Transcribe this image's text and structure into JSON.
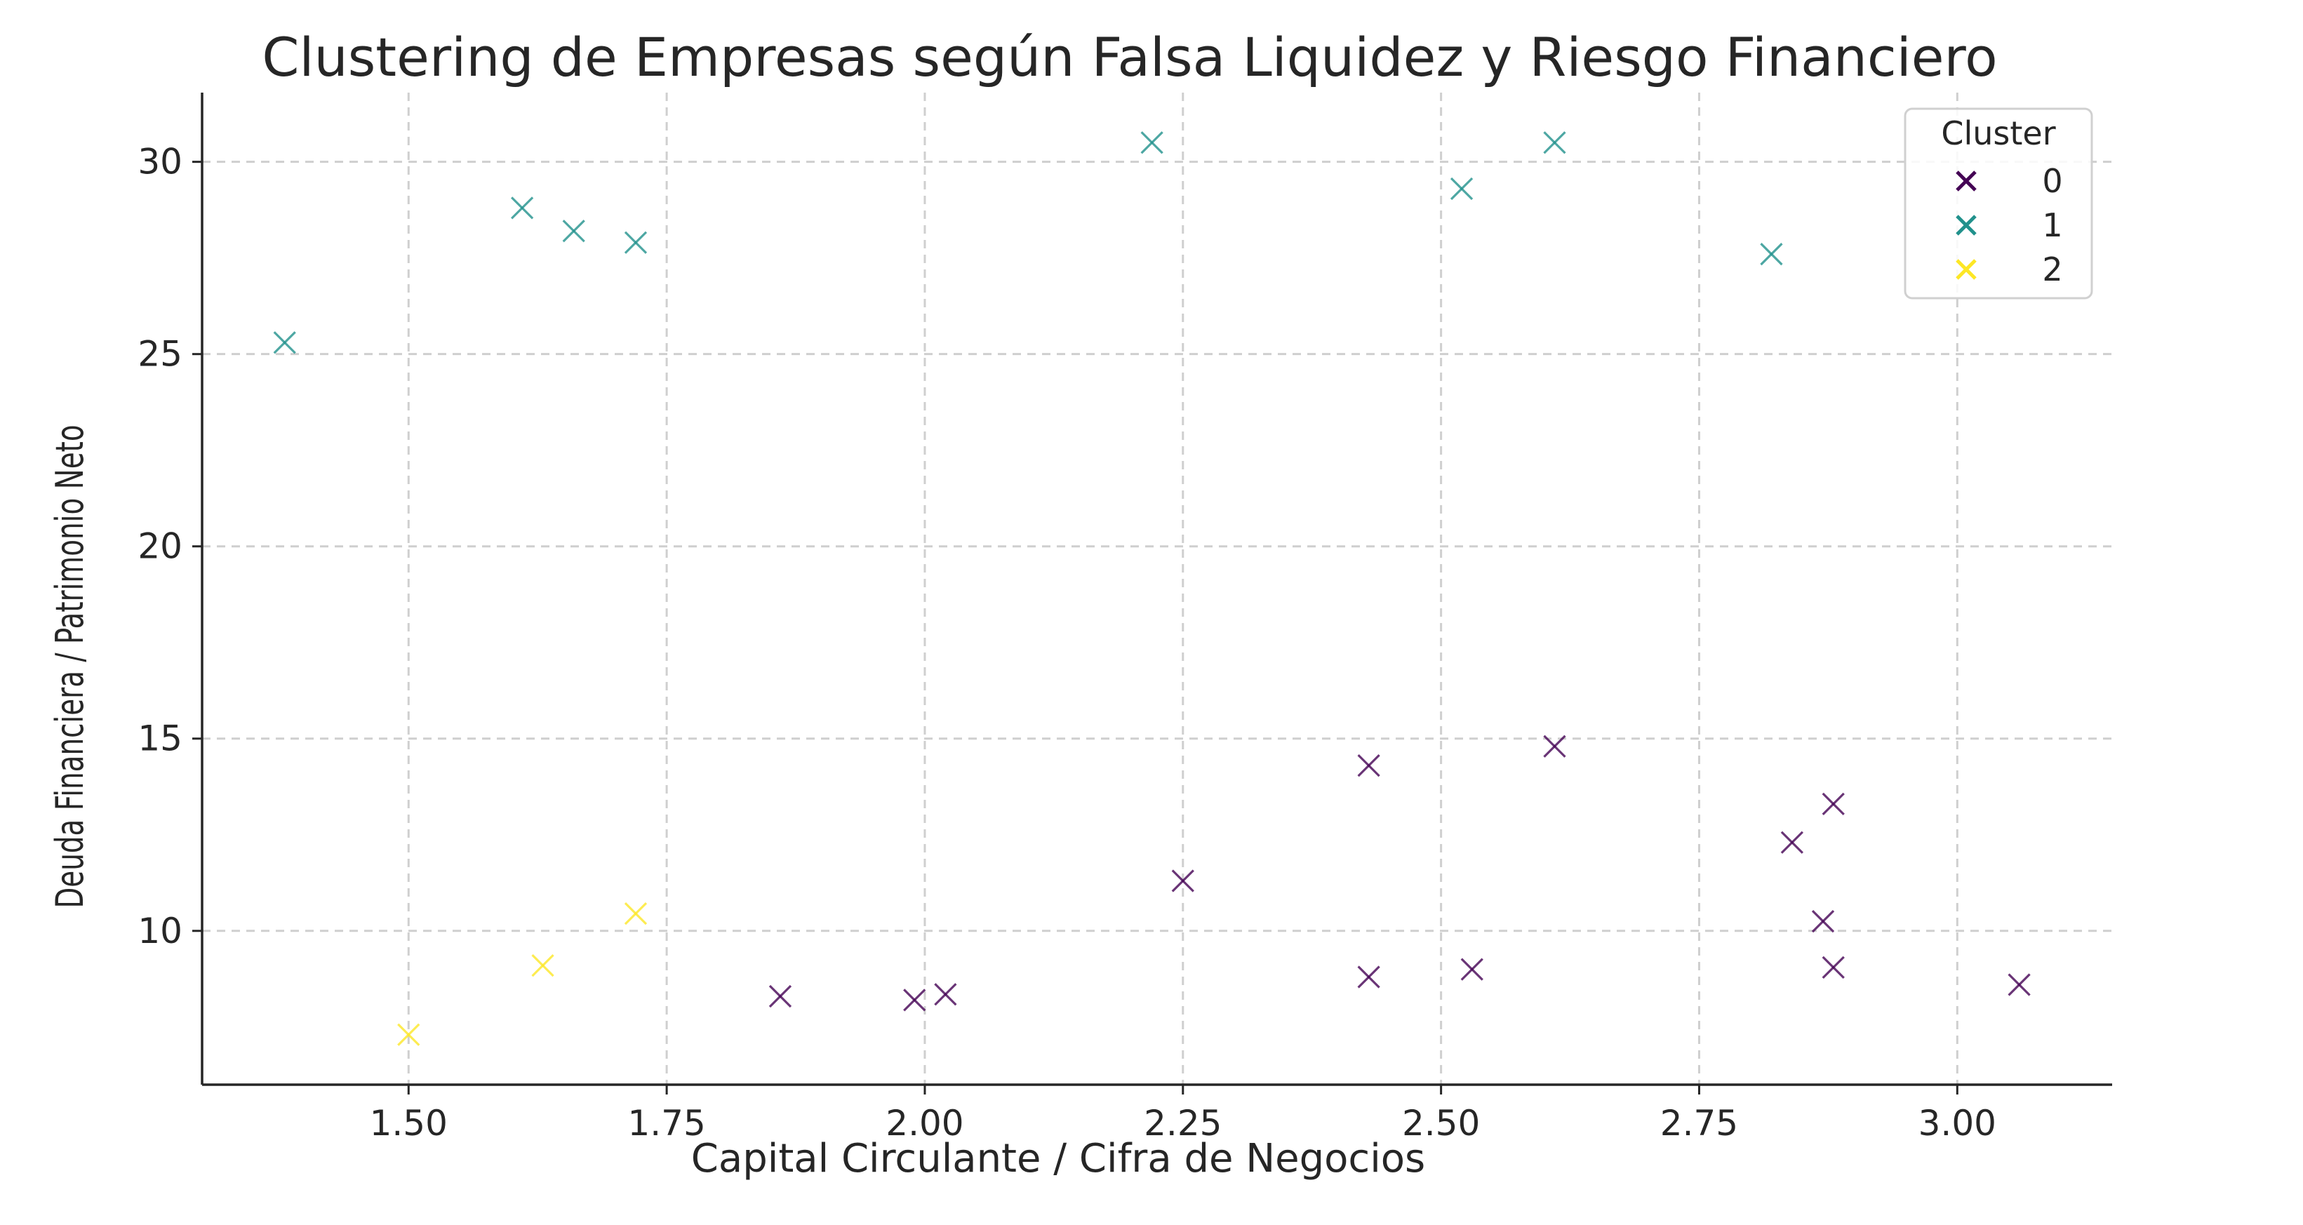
{
  "chart_data": {
    "type": "scatter",
    "title": "Clustering de Empresas según Falsa Liquidez y Riesgo Financiero",
    "xlabel": "Capital Circulante / Cifra de Negocios",
    "ylabel": "Deuda Financiera / Patrimonio Neto",
    "xlim": [
      1.3,
      3.15
    ],
    "ylim": [
      6.0,
      31.8
    ],
    "xticks": [
      1.5,
      1.75,
      2.0,
      2.25,
      2.5,
      2.75,
      3.0
    ],
    "xtick_labels": [
      "1.50",
      "1.75",
      "2.00",
      "2.25",
      "2.50",
      "2.75",
      "3.00"
    ],
    "yticks": [
      10,
      15,
      20,
      25,
      30
    ],
    "ytick_labels": [
      "10",
      "15",
      "20",
      "25",
      "30"
    ],
    "grid": true,
    "marker": "x",
    "legend": {
      "title": "Cluster",
      "position": "top-right"
    },
    "series": [
      {
        "name": "0",
        "color": "#440154",
        "points": [
          {
            "x": 1.86,
            "y": 8.3
          },
          {
            "x": 1.99,
            "y": 8.2
          },
          {
            "x": 2.02,
            "y": 8.35
          },
          {
            "x": 2.25,
            "y": 11.3
          },
          {
            "x": 2.43,
            "y": 14.3
          },
          {
            "x": 2.43,
            "y": 8.8
          },
          {
            "x": 2.53,
            "y": 9.0
          },
          {
            "x": 2.61,
            "y": 14.8
          },
          {
            "x": 2.84,
            "y": 12.3
          },
          {
            "x": 2.87,
            "y": 10.25
          },
          {
            "x": 2.88,
            "y": 13.3
          },
          {
            "x": 2.88,
            "y": 9.05
          },
          {
            "x": 3.06,
            "y": 8.6
          }
        ]
      },
      {
        "name": "1",
        "color": "#21918c",
        "points": [
          {
            "x": 1.38,
            "y": 25.3
          },
          {
            "x": 1.61,
            "y": 28.8
          },
          {
            "x": 1.66,
            "y": 28.2
          },
          {
            "x": 1.72,
            "y": 27.9
          },
          {
            "x": 2.22,
            "y": 30.5
          },
          {
            "x": 2.52,
            "y": 29.3
          },
          {
            "x": 2.61,
            "y": 30.5
          },
          {
            "x": 2.82,
            "y": 27.6
          }
        ]
      },
      {
        "name": "2",
        "color": "#fde725",
        "points": [
          {
            "x": 1.5,
            "y": 7.3
          },
          {
            "x": 1.63,
            "y": 9.1
          },
          {
            "x": 1.72,
            "y": 10.45
          }
        ]
      }
    ]
  }
}
